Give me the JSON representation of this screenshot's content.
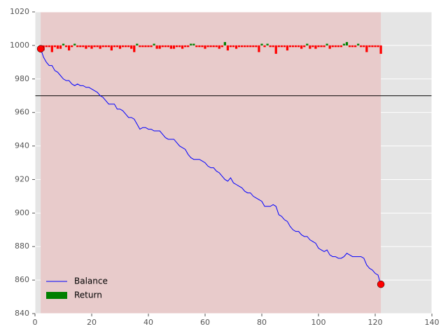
{
  "chart_data": {
    "type": "line",
    "x": [
      2,
      3,
      4,
      5,
      6,
      7,
      8,
      9,
      10,
      11,
      12,
      13,
      14,
      15,
      16,
      17,
      18,
      19,
      20,
      21,
      22,
      23,
      24,
      25,
      26,
      27,
      28,
      29,
      30,
      31,
      32,
      33,
      34,
      35,
      36,
      37,
      38,
      39,
      40,
      41,
      42,
      43,
      44,
      45,
      46,
      47,
      48,
      49,
      50,
      51,
      52,
      53,
      54,
      55,
      56,
      57,
      58,
      59,
      60,
      61,
      62,
      63,
      64,
      65,
      66,
      67,
      68,
      69,
      70,
      71,
      72,
      73,
      74,
      75,
      76,
      77,
      78,
      79,
      80,
      81,
      82,
      83,
      84,
      85,
      86,
      87,
      88,
      89,
      90,
      91,
      92,
      93,
      94,
      95,
      96,
      97,
      98,
      99,
      100,
      101,
      102,
      103,
      104,
      105,
      106,
      107,
      108,
      109,
      110,
      111,
      112,
      113,
      114,
      115,
      116,
      117,
      118,
      119,
      120,
      121,
      122
    ],
    "series": [
      {
        "name": "Balance",
        "color": "#0000ff",
        "kind": "line",
        "values": [
          998,
          993,
          990,
          988,
          988,
          985,
          984,
          982,
          980,
          979,
          979,
          977,
          976,
          977,
          976,
          976,
          975,
          975,
          974,
          973,
          972,
          970,
          969,
          967,
          965,
          965,
          965,
          962,
          962,
          961,
          959,
          957,
          957,
          956,
          953,
          950,
          951,
          951,
          950,
          950,
          949,
          949,
          949,
          947,
          945,
          944,
          944,
          944,
          942,
          940,
          939,
          938,
          935,
          933,
          932,
          932,
          932,
          931,
          930,
          928,
          927,
          927,
          925,
          924,
          922,
          920,
          919,
          921,
          918,
          917,
          916,
          915,
          913,
          912,
          912,
          910,
          909,
          908,
          907,
          904,
          904,
          904,
          905,
          904,
          899,
          898,
          896,
          895,
          892,
          890,
          889,
          889,
          887,
          886,
          886,
          884,
          883,
          882,
          879,
          878,
          877,
          878,
          875,
          874,
          874,
          873,
          873,
          874,
          876,
          875,
          874,
          874,
          874,
          874,
          873,
          869,
          867,
          866,
          864,
          863,
          857
        ]
      },
      {
        "name": "Return",
        "color": "#008000",
        "negative_color": "#ff0000",
        "kind": "bar",
        "baseline": 1000,
        "values": [
          -2,
          -3,
          -1,
          -1,
          -4,
          -1,
          -2,
          -2,
          1,
          -1,
          -3,
          -1,
          1,
          -1,
          -1,
          -1,
          -2,
          -1,
          -2,
          -1,
          -1,
          -2,
          -1,
          -1,
          -1,
          -3,
          -1,
          -1,
          -2,
          -1,
          -1,
          -1,
          -2,
          -4,
          1,
          -1,
          -1,
          -1,
          -1,
          -1,
          1,
          -2,
          -2,
          -1,
          -1,
          -1,
          -2,
          -2,
          -1,
          -1,
          -2,
          -1,
          -1,
          1,
          1,
          -1,
          -1,
          -1,
          -2,
          -1,
          -1,
          -1,
          -1,
          -2,
          -1,
          2,
          -3,
          -1,
          -1,
          -2,
          -1,
          -1,
          -1,
          -1,
          -1,
          -1,
          -1,
          -4,
          1,
          -1,
          1,
          -1,
          -1,
          -5,
          -1,
          -1,
          -1,
          -3,
          -1,
          -1,
          -1,
          -1,
          -2,
          -1,
          1,
          -2,
          -1,
          -2,
          -1,
          -1,
          -1,
          1,
          -2,
          -1,
          -1,
          -1,
          -1,
          1,
          2,
          -1,
          -1,
          -1,
          1,
          -1,
          -1,
          -4,
          -1,
          -1,
          -1,
          -1,
          -5
        ]
      }
    ],
    "markers": {
      "color": "#ff0000",
      "x": [
        2,
        122
      ],
      "y": [
        998,
        857.5
      ]
    },
    "span": {
      "color": "#e8cbcb",
      "x": [
        2,
        122
      ]
    },
    "hline": {
      "color": "#000000",
      "y": 970
    },
    "xlim": [
      0,
      140
    ],
    "xticks": [
      0,
      20,
      40,
      60,
      80,
      100,
      120,
      140
    ],
    "ylim": [
      840,
      1020
    ],
    "yticks": [
      840,
      860,
      880,
      900,
      920,
      940,
      960,
      980,
      1000,
      1020
    ],
    "grid": true,
    "background": "#e5e5e5",
    "legend": "lower left"
  }
}
